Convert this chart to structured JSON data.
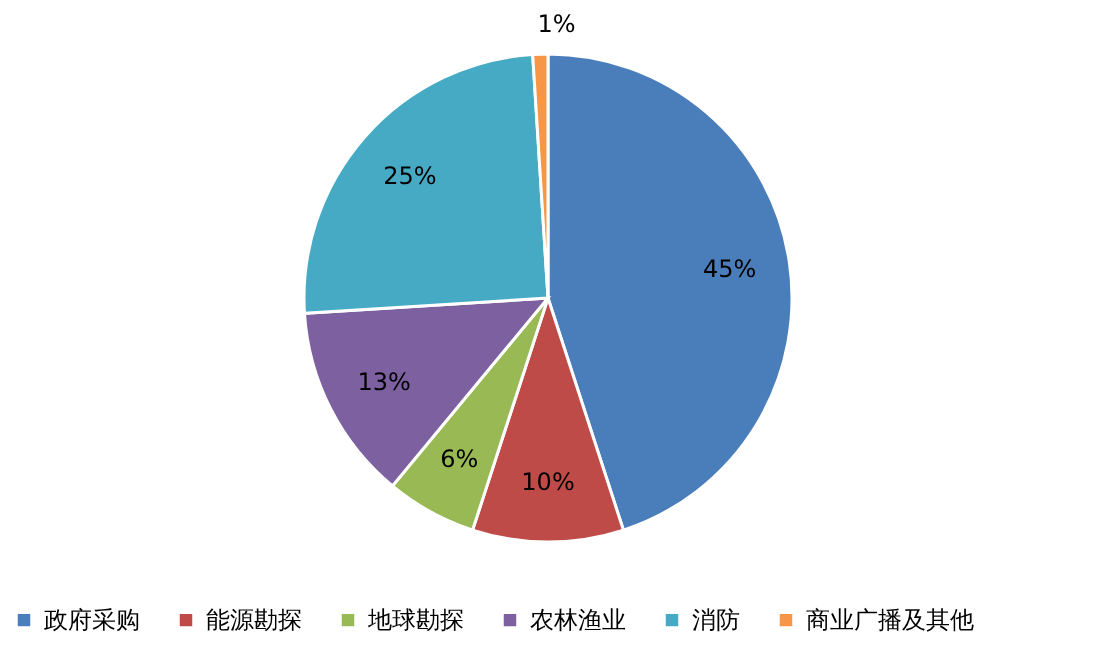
{
  "chart_data": {
    "type": "pie",
    "categories": [
      "政府采购",
      "能源勘探",
      "地球勘探",
      "农林渔业",
      "消防",
      "商业广播及其他"
    ],
    "values": [
      45,
      10,
      6,
      13,
      25,
      1
    ],
    "colors": [
      "#4a7ebb",
      "#be4b48",
      "#98b954",
      "#7d60a0",
      "#46aac5",
      "#f79646"
    ],
    "value_labels": [
      "45%",
      "10%",
      "6%",
      "13%",
      "25%",
      "1%"
    ],
    "legend": "bottom"
  }
}
